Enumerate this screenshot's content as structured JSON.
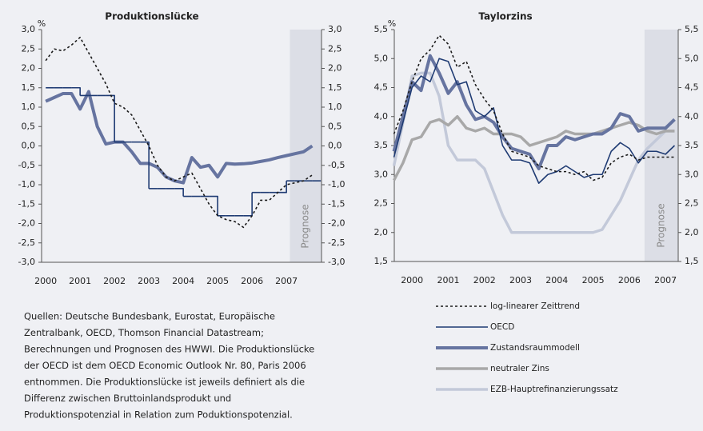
{
  "chart_data": [
    {
      "type": "line",
      "title": "Produktionslücke",
      "unit": "%",
      "x": [
        2000,
        2000.25,
        2000.5,
        2000.75,
        2001,
        2001.25,
        2001.5,
        2001.75,
        2002,
        2002.25,
        2002.5,
        2002.75,
        2003,
        2003.25,
        2003.5,
        2003.75,
        2004,
        2004.25,
        2004.5,
        2004.75,
        2005,
        2005.25,
        2005.5,
        2005.75,
        2006,
        2006.25,
        2006.5,
        2006.75,
        2007,
        2007.25,
        2007.5,
        2007.75
      ],
      "xlim": [
        1999.88,
        2008.02
      ],
      "xticks": [
        2000,
        2001,
        2002,
        2003,
        2004,
        2005,
        2006,
        2007
      ],
      "ylim": [
        -3,
        3
      ],
      "yticks": [
        {
          "value": -3,
          "label": "-3,0"
        },
        {
          "value": -2.5,
          "label": "-2,5"
        },
        {
          "value": -2,
          "label": "-2,0"
        },
        {
          "value": -1.5,
          "label": "-1,5"
        },
        {
          "value": -1,
          "label": "-1,0"
        },
        {
          "value": -0.5,
          "label": "-0,5"
        },
        {
          "value": 0,
          "label": "0,0"
        },
        {
          "value": 0.5,
          "label": "0,5"
        },
        {
          "value": 1,
          "label": "1,0"
        },
        {
          "value": 1.5,
          "label": "1,5"
        },
        {
          "value": 2,
          "label": "2,0"
        },
        {
          "value": 2.5,
          "label": "2,5"
        },
        {
          "value": 3,
          "label": "3,0"
        }
      ],
      "forecast": {
        "label": "Prognose",
        "from": 2007.1
      },
      "series": [
        {
          "name": "log-linearer Zeittrend",
          "color": "#1a1a1a",
          "style": "dotted",
          "values": [
            2.2,
            2.5,
            2.45,
            2.6,
            2.8,
            2.4,
            2.0,
            1.6,
            1.1,
            1.0,
            0.8,
            0.4,
            0.0,
            -0.5,
            -0.8,
            -0.9,
            -0.8,
            -0.7,
            -1.1,
            -1.5,
            -1.8,
            -1.9,
            -1.95,
            -2.1,
            -1.8,
            -1.4,
            -1.4,
            -1.2,
            -1.0,
            -0.95,
            -0.9,
            -0.75
          ]
        },
        {
          "name": "OECD",
          "color": "#1f3b73",
          "step": true,
          "values": [
            1.5,
            1.5,
            1.5,
            1.5,
            1.3,
            1.3,
            1.3,
            1.3,
            0.1,
            0.1,
            0.1,
            0.1,
            -1.1,
            -1.1,
            -1.1,
            -1.1,
            -1.3,
            -1.3,
            -1.3,
            -1.3,
            -1.8,
            -1.8,
            -1.8,
            -1.8,
            -1.2,
            -1.2,
            -1.2,
            -1.2,
            -0.9,
            -0.9,
            -0.9,
            -0.9
          ]
        },
        {
          "name": "Zustandsraummodell",
          "color": "#6674a0",
          "values": [
            1.15,
            1.25,
            1.35,
            1.35,
            0.95,
            1.4,
            0.5,
            0.05,
            0.1,
            0.1,
            -0.15,
            -0.45,
            -0.45,
            -0.55,
            -0.8,
            -0.9,
            -0.95,
            -0.3,
            -0.55,
            -0.5,
            -0.8,
            -0.45,
            -0.47,
            -0.46,
            -0.44,
            -0.4,
            -0.36,
            -0.3,
            -0.25,
            -0.2,
            -0.15,
            0.0
          ]
        }
      ]
    },
    {
      "type": "line",
      "title": "Taylorzins",
      "unit": "%",
      "x": [
        1999.5,
        1999.75,
        2000,
        2000.25,
        2000.5,
        2000.75,
        2001,
        2001.25,
        2001.5,
        2001.75,
        2002,
        2002.25,
        2002.5,
        2002.75,
        2003,
        2003.25,
        2003.5,
        2003.75,
        2004,
        2004.25,
        2004.5,
        2004.75,
        2005,
        2005.25,
        2005.5,
        2005.75,
        2006,
        2006.25,
        2006.5,
        2006.75,
        2007,
        2007.25
      ],
      "xlim": [
        1999.51,
        2007.35
      ],
      "xticks": [
        2000,
        2001,
        2002,
        2003,
        2004,
        2005,
        2006,
        2007
      ],
      "ylim": [
        1.5,
        5.5
      ],
      "yticks": [
        {
          "value": 1.5,
          "label": "1,5"
        },
        {
          "value": 2,
          "label": "2,0"
        },
        {
          "value": 2.5,
          "label": "2,5"
        },
        {
          "value": 3,
          "label": "3,0"
        },
        {
          "value": 3.5,
          "label": "3,5"
        },
        {
          "value": 4,
          "label": "4,0"
        },
        {
          "value": 4.5,
          "label": "4,5"
        },
        {
          "value": 5,
          "label": "5,0"
        },
        {
          "value": 5.5,
          "label": "5,5"
        }
      ],
      "forecast": {
        "label": "Prognose",
        "from": 2006.42
      },
      "series": [
        {
          "name": "log-linearer Zeittrend",
          "color": "#1a1a1a",
          "style": "dotted",
          "values": [
            3.7,
            4.1,
            4.6,
            5.0,
            5.15,
            5.4,
            5.25,
            4.85,
            4.95,
            4.55,
            4.3,
            4.1,
            3.7,
            3.4,
            3.35,
            3.3,
            3.15,
            3.1,
            3.05,
            3.05,
            3.0,
            3.05,
            2.9,
            2.95,
            3.2,
            3.3,
            3.35,
            3.25,
            3.3,
            3.3,
            3.3,
            3.3
          ]
        },
        {
          "name": "OECD",
          "color": "#1f3b73",
          "values": [
            3.3,
            3.9,
            4.5,
            4.7,
            4.6,
            5.0,
            4.95,
            4.55,
            4.6,
            4.1,
            4.0,
            4.15,
            3.5,
            3.25,
            3.25,
            3.2,
            2.85,
            3.0,
            3.05,
            3.15,
            3.05,
            2.95,
            3.0,
            3.0,
            3.4,
            3.55,
            3.45,
            3.2,
            3.4,
            3.4,
            3.35,
            3.5
          ]
        },
        {
          "name": "Zustandsraummodell",
          "color": "#6674a0",
          "values": [
            3.4,
            4.0,
            4.6,
            4.45,
            5.05,
            4.75,
            4.4,
            4.6,
            4.2,
            3.95,
            4.0,
            3.9,
            3.65,
            3.45,
            3.4,
            3.35,
            3.1,
            3.5,
            3.5,
            3.65,
            3.6,
            3.65,
            3.7,
            3.7,
            3.8,
            4.05,
            4.0,
            3.75,
            3.8,
            3.8,
            3.8,
            3.95
          ]
        },
        {
          "name": "neutraler Zins",
          "color": "#a8a8a8",
          "values": [
            2.9,
            3.2,
            3.6,
            3.65,
            3.9,
            3.95,
            3.85,
            4.0,
            3.8,
            3.75,
            3.8,
            3.7,
            3.7,
            3.7,
            3.65,
            3.5,
            3.55,
            3.6,
            3.65,
            3.75,
            3.7,
            3.7,
            3.7,
            3.75,
            3.8,
            3.85,
            3.9,
            3.85,
            3.75,
            3.7,
            3.75,
            3.75
          ]
        },
        {
          "name": "EZB-Hauptrefinanzierungssatz",
          "color": "#c3c9d9",
          "values": [
            3.15,
            3.9,
            4.7,
            4.75,
            4.75,
            4.35,
            3.5,
            3.25,
            3.25,
            3.25,
            3.1,
            2.7,
            2.3,
            2.0,
            2.0,
            2.0,
            2.0,
            2.0,
            2.0,
            2.0,
            2.0,
            2.0,
            2.0,
            2.05,
            2.3,
            2.55,
            2.9,
            3.25,
            3.45,
            3.6,
            3.75,
            3.75
          ]
        }
      ]
    }
  ],
  "source_notes": [
    "Quellen: Deutsche Bundesbank, Eurostat, Europäische",
    "Zentralbank, OECD, Thomson Financial Datastream;",
    "Berechnungen und Prognosen des HWWI. Die Produktionslücke",
    "der OECD ist dem OECD Economic Outlook Nr. 80, Paris 2006",
    "entnommen. Die Produktionslücke ist jeweils definiert als die",
    "Differenz zwischen Bruttoinlandsprodukt und",
    "Produktionspotenzial in Relation zum Poduktionspotenzial."
  ]
}
